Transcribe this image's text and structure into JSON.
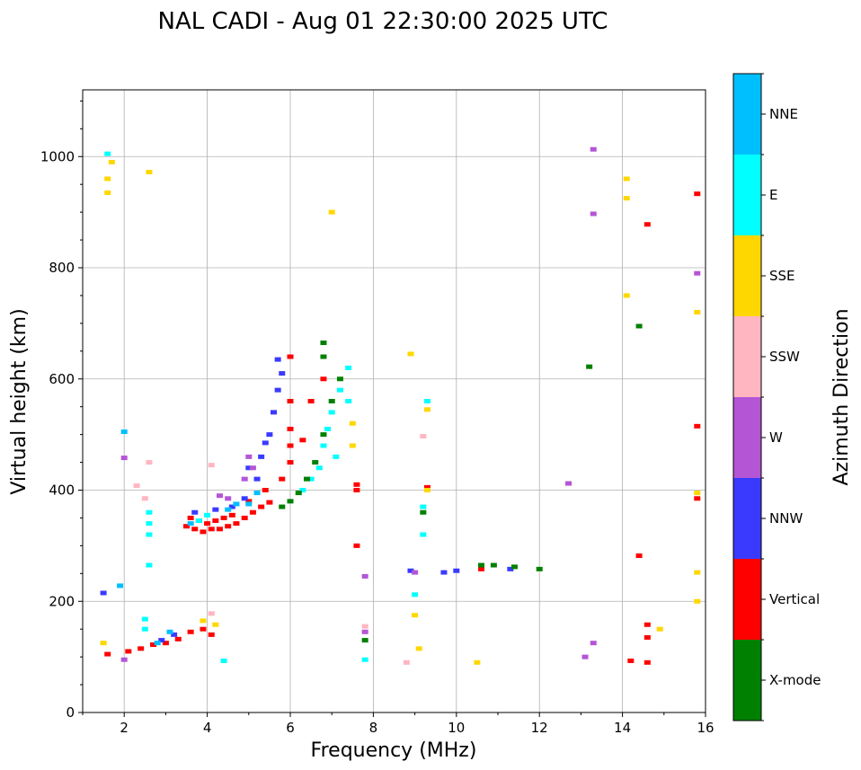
{
  "chart_data": {
    "type": "scatter",
    "title": "NAL CADI - Aug 01 22:30:00 2025 UTC",
    "xlabel": "Frequency (MHz)",
    "ylabel": "Virtual height (km)",
    "xlim": [
      1,
      16
    ],
    "ylim": [
      0,
      1120
    ],
    "xticks": [
      "2",
      "4",
      "6",
      "8",
      "10",
      "12",
      "14",
      "16"
    ],
    "yticks": [
      "0",
      "200",
      "400",
      "600",
      "800",
      "1000"
    ],
    "grid": true,
    "colorbar": {
      "label": "Azimuth Direction",
      "categories": [
        "X-mode",
        "Vertical",
        "NNW",
        "W",
        "SSW",
        "SSE",
        "E",
        "NNE"
      ],
      "colors": [
        "#008000",
        "#ff0000",
        "#3a3aff",
        "#b455d6",
        "#ffb6c1",
        "#ffd700",
        "#00ffff",
        "#00bfff"
      ]
    },
    "echoes": [
      {
        "series": "Vertical",
        "f": 3.5,
        "h": 335
      },
      {
        "series": "Vertical",
        "f": 3.7,
        "h": 330
      },
      {
        "series": "Vertical",
        "f": 3.9,
        "h": 325
      },
      {
        "series": "Vertical",
        "f": 4.1,
        "h": 330
      },
      {
        "series": "Vertical",
        "f": 4.3,
        "h": 330
      },
      {
        "series": "Vertical",
        "f": 4.5,
        "h": 335
      },
      {
        "series": "Vertical",
        "f": 4.7,
        "h": 340
      },
      {
        "series": "Vertical",
        "f": 4.9,
        "h": 350
      },
      {
        "series": "Vertical",
        "f": 5.1,
        "h": 360
      },
      {
        "series": "Vertical",
        "f": 5.3,
        "h": 370
      },
      {
        "series": "Vertical",
        "f": 5.5,
        "h": 378
      },
      {
        "series": "Vertical",
        "f": 3.6,
        "h": 350
      },
      {
        "series": "Vertical",
        "f": 3.8,
        "h": 345
      },
      {
        "series": "Vertical",
        "f": 4.0,
        "h": 340
      },
      {
        "series": "Vertical",
        "f": 4.2,
        "h": 345
      },
      {
        "series": "Vertical",
        "f": 4.4,
        "h": 350
      },
      {
        "series": "Vertical",
        "f": 4.6,
        "h": 355
      },
      {
        "series": "Vertical",
        "f": 5.0,
        "h": 380
      },
      {
        "series": "Vertical",
        "f": 5.4,
        "h": 400
      },
      {
        "series": "Vertical",
        "f": 5.8,
        "h": 420
      },
      {
        "series": "Vertical",
        "f": 6.0,
        "h": 450
      },
      {
        "series": "Vertical",
        "f": 6.0,
        "h": 480
      },
      {
        "series": "Vertical",
        "f": 6.0,
        "h": 510
      },
      {
        "series": "Vertical",
        "f": 6.0,
        "h": 560
      },
      {
        "series": "Vertical",
        "f": 6.0,
        "h": 640
      },
      {
        "series": "Vertical",
        "f": 6.3,
        "h": 490
      },
      {
        "series": "Vertical",
        "f": 6.5,
        "h": 560
      },
      {
        "series": "Vertical",
        "f": 6.8,
        "h": 600
      },
      {
        "series": "Vertical",
        "f": 7.6,
        "h": 410
      },
      {
        "series": "Vertical",
        "f": 7.6,
        "h": 400
      },
      {
        "series": "Vertical",
        "f": 7.6,
        "h": 300
      },
      {
        "series": "Vertical",
        "f": 9.3,
        "h": 405
      },
      {
        "series": "Vertical",
        "f": 14.4,
        "h": 282
      },
      {
        "series": "Vertical",
        "f": 14.6,
        "h": 878
      },
      {
        "series": "Vertical",
        "f": 14.6,
        "h": 158
      },
      {
        "series": "Vertical",
        "f": 14.6,
        "h": 135
      },
      {
        "series": "Vertical",
        "f": 14.6,
        "h": 90
      },
      {
        "series": "Vertical",
        "f": 14.2,
        "h": 93
      },
      {
        "series": "Vertical",
        "f": 15.8,
        "h": 385
      },
      {
        "series": "Vertical",
        "f": 15.8,
        "h": 515
      },
      {
        "series": "Vertical",
        "f": 15.8,
        "h": 933
      },
      {
        "series": "Vertical",
        "f": 10.6,
        "h": 258
      },
      {
        "series": "Vertical",
        "f": 1.6,
        "h": 105
      },
      {
        "series": "Vertical",
        "f": 2.1,
        "h": 110
      },
      {
        "series": "Vertical",
        "f": 2.4,
        "h": 115
      },
      {
        "series": "Vertical",
        "f": 2.7,
        "h": 122
      },
      {
        "series": "Vertical",
        "f": 3.0,
        "h": 125
      },
      {
        "series": "Vertical",
        "f": 3.3,
        "h": 132
      },
      {
        "series": "Vertical",
        "f": 3.6,
        "h": 145
      },
      {
        "series": "Vertical",
        "f": 3.9,
        "h": 150
      },
      {
        "series": "Vertical",
        "f": 4.1,
        "h": 140
      },
      {
        "series": "NNW",
        "f": 3.7,
        "h": 360
      },
      {
        "series": "NNW",
        "f": 4.2,
        "h": 365
      },
      {
        "series": "NNW",
        "f": 4.6,
        "h": 370
      },
      {
        "series": "NNW",
        "f": 4.9,
        "h": 385
      },
      {
        "series": "NNW",
        "f": 5.2,
        "h": 420
      },
      {
        "series": "NNW",
        "f": 5.3,
        "h": 460
      },
      {
        "series": "NNW",
        "f": 5.5,
        "h": 500
      },
      {
        "series": "NNW",
        "f": 5.6,
        "h": 540
      },
      {
        "series": "NNW",
        "f": 5.7,
        "h": 580
      },
      {
        "series": "NNW",
        "f": 5.8,
        "h": 610
      },
      {
        "series": "NNW",
        "f": 5.7,
        "h": 635
      },
      {
        "series": "NNW",
        "f": 5.0,
        "h": 440
      },
      {
        "series": "NNW",
        "f": 5.4,
        "h": 485
      },
      {
        "series": "NNW",
        "f": 2.9,
        "h": 130
      },
      {
        "series": "NNW",
        "f": 3.2,
        "h": 140
      },
      {
        "series": "NNW",
        "f": 8.9,
        "h": 255
      },
      {
        "series": "NNW",
        "f": 9.7,
        "h": 252
      },
      {
        "series": "NNW",
        "f": 10.0,
        "h": 255
      },
      {
        "series": "NNW",
        "f": 11.3,
        "h": 258
      },
      {
        "series": "NNW",
        "f": 1.5,
        "h": 215
      },
      {
        "series": "W",
        "f": 5.0,
        "h": 460
      },
      {
        "series": "W",
        "f": 5.1,
        "h": 440
      },
      {
        "series": "W",
        "f": 4.9,
        "h": 420
      },
      {
        "series": "W",
        "f": 4.3,
        "h": 390
      },
      {
        "series": "W",
        "f": 4.5,
        "h": 385
      },
      {
        "series": "W",
        "f": 2.0,
        "h": 458
      },
      {
        "series": "W",
        "f": 2.0,
        "h": 95
      },
      {
        "series": "W",
        "f": 7.8,
        "h": 245
      },
      {
        "series": "W",
        "f": 7.8,
        "h": 145
      },
      {
        "series": "W",
        "f": 9.0,
        "h": 252
      },
      {
        "series": "W",
        "f": 12.7,
        "h": 412
      },
      {
        "series": "W",
        "f": 13.3,
        "h": 1013
      },
      {
        "series": "W",
        "f": 13.3,
        "h": 897
      },
      {
        "series": "W",
        "f": 13.3,
        "h": 125
      },
      {
        "series": "W",
        "f": 13.1,
        "h": 100
      },
      {
        "series": "W",
        "f": 15.8,
        "h": 790
      },
      {
        "series": "SSW",
        "f": 2.5,
        "h": 385
      },
      {
        "series": "SSW",
        "f": 2.3,
        "h": 408
      },
      {
        "series": "SSW",
        "f": 2.6,
        "h": 450
      },
      {
        "series": "SSW",
        "f": 4.1,
        "h": 445
      },
      {
        "series": "SSW",
        "f": 4.1,
        "h": 178
      },
      {
        "series": "SSW",
        "f": 8.8,
        "h": 90
      },
      {
        "series": "SSW",
        "f": 9.2,
        "h": 497
      },
      {
        "series": "SSW",
        "f": 7.8,
        "h": 155
      },
      {
        "series": "SSE",
        "f": 1.6,
        "h": 960
      },
      {
        "series": "SSE",
        "f": 1.6,
        "h": 935
      },
      {
        "series": "SSE",
        "f": 1.7,
        "h": 990
      },
      {
        "series": "SSE",
        "f": 2.6,
        "h": 972
      },
      {
        "series": "SSE",
        "f": 7.0,
        "h": 900
      },
      {
        "series": "SSE",
        "f": 8.9,
        "h": 645
      },
      {
        "series": "SSE",
        "f": 9.3,
        "h": 545
      },
      {
        "series": "SSE",
        "f": 9.3,
        "h": 400
      },
      {
        "series": "SSE",
        "f": 9.0,
        "h": 175
      },
      {
        "series": "SSE",
        "f": 9.1,
        "h": 115
      },
      {
        "series": "SSE",
        "f": 10.5,
        "h": 90
      },
      {
        "series": "SSE",
        "f": 14.1,
        "h": 960
      },
      {
        "series": "SSE",
        "f": 14.1,
        "h": 925
      },
      {
        "series": "SSE",
        "f": 14.1,
        "h": 750
      },
      {
        "series": "SSE",
        "f": 14.9,
        "h": 150
      },
      {
        "series": "SSE",
        "f": 15.8,
        "h": 720
      },
      {
        "series": "SSE",
        "f": 15.8,
        "h": 395
      },
      {
        "series": "SSE",
        "f": 15.8,
        "h": 252
      },
      {
        "series": "SSE",
        "f": 15.8,
        "h": 200
      },
      {
        "series": "SSE",
        "f": 4.2,
        "h": 158
      },
      {
        "series": "SSE",
        "f": 3.9,
        "h": 165
      },
      {
        "series": "SSE",
        "f": 1.5,
        "h": 125
      },
      {
        "series": "SSE",
        "f": 7.5,
        "h": 520
      },
      {
        "series": "SSE",
        "f": 7.5,
        "h": 480
      },
      {
        "series": "E",
        "f": 2.6,
        "h": 320
      },
      {
        "series": "E",
        "f": 2.6,
        "h": 340
      },
      {
        "series": "E",
        "f": 2.6,
        "h": 360
      },
      {
        "series": "E",
        "f": 2.6,
        "h": 265
      },
      {
        "series": "E",
        "f": 2.5,
        "h": 168
      },
      {
        "series": "E",
        "f": 2.5,
        "h": 150
      },
      {
        "series": "E",
        "f": 4.4,
        "h": 93
      },
      {
        "series": "E",
        "f": 6.5,
        "h": 420
      },
      {
        "series": "E",
        "f": 6.7,
        "h": 440
      },
      {
        "series": "E",
        "f": 6.8,
        "h": 480
      },
      {
        "series": "E",
        "f": 6.9,
        "h": 510
      },
      {
        "series": "E",
        "f": 7.0,
        "h": 540
      },
      {
        "series": "E",
        "f": 7.2,
        "h": 580
      },
      {
        "series": "E",
        "f": 7.4,
        "h": 620
      },
      {
        "series": "E",
        "f": 7.1,
        "h": 460
      },
      {
        "series": "E",
        "f": 6.3,
        "h": 400
      },
      {
        "series": "E",
        "f": 7.4,
        "h": 560
      },
      {
        "series": "E",
        "f": 9.3,
        "h": 560
      },
      {
        "series": "E",
        "f": 9.2,
        "h": 370
      },
      {
        "series": "E",
        "f": 9.2,
        "h": 320
      },
      {
        "series": "E",
        "f": 9.0,
        "h": 212
      },
      {
        "series": "E",
        "f": 7.8,
        "h": 95
      },
      {
        "series": "E",
        "f": 3.8,
        "h": 345
      },
      {
        "series": "E",
        "f": 4.0,
        "h": 355
      },
      {
        "series": "E",
        "f": 1.6,
        "h": 1005
      },
      {
        "series": "NNE",
        "f": 2.0,
        "h": 505
      },
      {
        "series": "NNE",
        "f": 1.9,
        "h": 228
      },
      {
        "series": "NNE",
        "f": 4.5,
        "h": 365
      },
      {
        "series": "NNE",
        "f": 4.7,
        "h": 375
      },
      {
        "series": "NNE",
        "f": 5.0,
        "h": 375
      },
      {
        "series": "NNE",
        "f": 5.2,
        "h": 395
      },
      {
        "series": "NNE",
        "f": 3.6,
        "h": 340
      },
      {
        "series": "NNE",
        "f": 3.1,
        "h": 145
      },
      {
        "series": "NNE",
        "f": 2.8,
        "h": 125
      },
      {
        "series": "X-mode",
        "f": 5.8,
        "h": 370
      },
      {
        "series": "X-mode",
        "f": 6.0,
        "h": 380
      },
      {
        "series": "X-mode",
        "f": 6.2,
        "h": 395
      },
      {
        "series": "X-mode",
        "f": 6.4,
        "h": 420
      },
      {
        "series": "X-mode",
        "f": 6.6,
        "h": 450
      },
      {
        "series": "X-mode",
        "f": 6.8,
        "h": 500
      },
      {
        "series": "X-mode",
        "f": 7.0,
        "h": 560
      },
      {
        "series": "X-mode",
        "f": 6.8,
        "h": 640
      },
      {
        "series": "X-mode",
        "f": 6.8,
        "h": 665
      },
      {
        "series": "X-mode",
        "f": 7.2,
        "h": 600
      },
      {
        "series": "X-mode",
        "f": 9.2,
        "h": 360
      },
      {
        "series": "X-mode",
        "f": 10.6,
        "h": 265
      },
      {
        "series": "X-mode",
        "f": 10.9,
        "h": 265
      },
      {
        "series": "X-mode",
        "f": 11.4,
        "h": 262
      },
      {
        "series": "X-mode",
        "f": 12.0,
        "h": 258
      },
      {
        "series": "X-mode",
        "f": 13.2,
        "h": 622
      },
      {
        "series": "X-mode",
        "f": 14.4,
        "h": 695
      },
      {
        "series": "X-mode",
        "f": 7.8,
        "h": 130
      }
    ]
  }
}
